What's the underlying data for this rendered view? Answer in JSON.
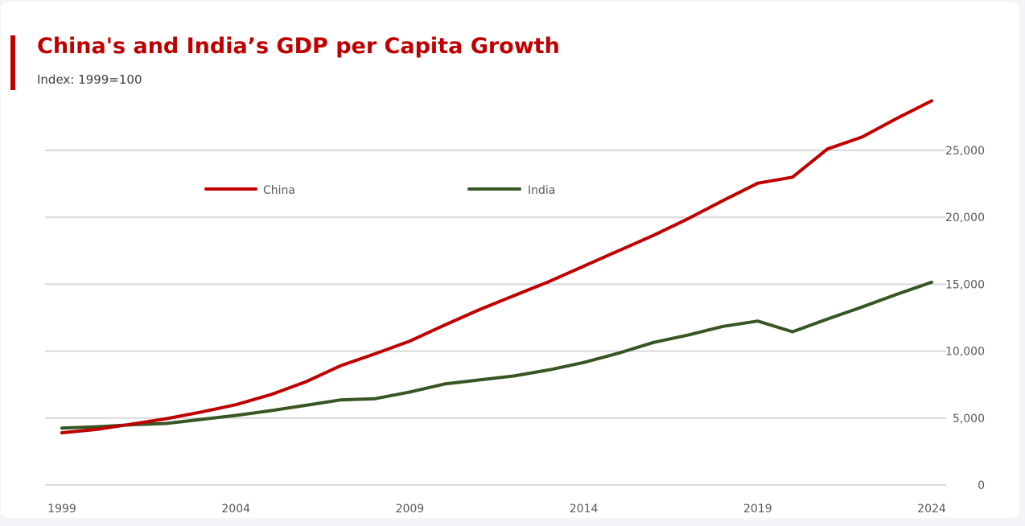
{
  "chart_data": {
    "type": "line",
    "title": "China's and India’s GDP per Capita Growth",
    "subtitle": "Index: 1999=100",
    "xlabel": "",
    "ylabel": "",
    "x": [
      1999,
      2000,
      2001,
      2002,
      2003,
      2004,
      2005,
      2006,
      2007,
      2008,
      2009,
      2010,
      2011,
      2012,
      2013,
      2014,
      2015,
      2016,
      2017,
      2018,
      2019,
      2020,
      2021,
      2022,
      2023,
      2024
    ],
    "x_ticks": [
      "1999",
      "2004",
      "2009",
      "2014",
      "2019",
      "2024"
    ],
    "y_ticks": [
      "0",
      "5,000",
      "10,000",
      "15,000",
      "20,000",
      "25,000"
    ],
    "y_tick_values": [
      0,
      5000,
      10000,
      15000,
      20000,
      25000
    ],
    "ylim": [
      0,
      28800
    ],
    "y_axis_position": "right",
    "grid": true,
    "legend_position": "top-left",
    "series": [
      {
        "name": "China",
        "color": "#c00000",
        "values": [
          3900,
          4150,
          4550,
          4950,
          5450,
          6000,
          6750,
          7700,
          8900,
          9800,
          10750,
          11950,
          13100,
          14150,
          15200,
          16350,
          17500,
          18650,
          19900,
          21250,
          22550,
          23000,
          25100,
          26000,
          27400,
          28700
        ]
      },
      {
        "name": "India",
        "color": "#375623",
        "values": [
          4250,
          4350,
          4500,
          4600,
          4900,
          5200,
          5550,
          5950,
          6350,
          6450,
          6950,
          7550,
          7850,
          8150,
          8600,
          9150,
          9850,
          10650,
          11200,
          11850,
          12250,
          11450,
          12400,
          13300,
          14250,
          15150
        ]
      }
    ]
  }
}
